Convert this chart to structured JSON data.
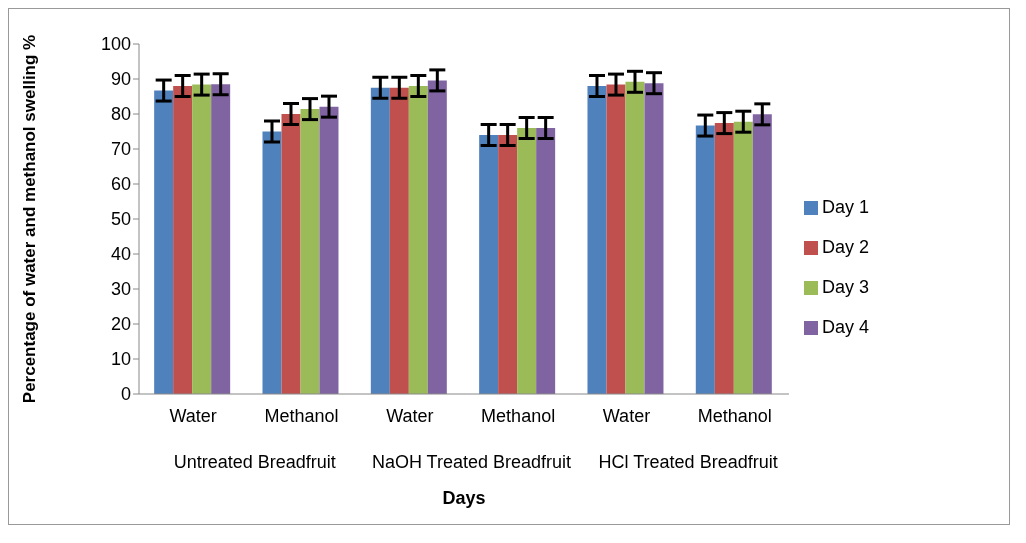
{
  "chart_data": {
    "type": "bar",
    "xlabel": "Days",
    "ylabel": "Percentage of water and methanol swelling %",
    "categories": [
      "Water",
      "Methanol",
      "Water",
      "Methanol",
      "Water",
      "Methanol"
    ],
    "annotations": [
      "Untreated Breadfruit",
      "NaOH Treated Breadfruit",
      "HCl Treated Breadfruit"
    ],
    "series": [
      {
        "name": "Day 1",
        "color": "#4f81bd",
        "values": [
          86.7,
          75,
          87.5,
          74,
          88,
          76.7
        ],
        "errors": [
          3,
          3,
          3,
          3,
          3,
          3
        ]
      },
      {
        "name": "Day 2",
        "color": "#c0504d",
        "values": [
          88,
          80,
          87.5,
          74,
          88.4,
          77.4
        ],
        "errors": [
          3,
          3,
          3,
          3,
          3,
          3
        ]
      },
      {
        "name": "Day 3",
        "color": "#9bbb59",
        "values": [
          88.4,
          81.4,
          88,
          76,
          89.2,
          77.8
        ],
        "errors": [
          3,
          3,
          3,
          3,
          3,
          3
        ]
      },
      {
        "name": "Day 4",
        "color": "#8064a2",
        "values": [
          88.5,
          82.1,
          89.6,
          76,
          88.8,
          79.9
        ],
        "errors": [
          3,
          3,
          3,
          3,
          3,
          3
        ]
      }
    ],
    "ylim": [
      0,
      100
    ],
    "yticks": [
      0,
      10,
      20,
      30,
      40,
      50,
      60,
      70,
      80,
      90,
      100
    ],
    "grid": false,
    "legend": "right"
  }
}
